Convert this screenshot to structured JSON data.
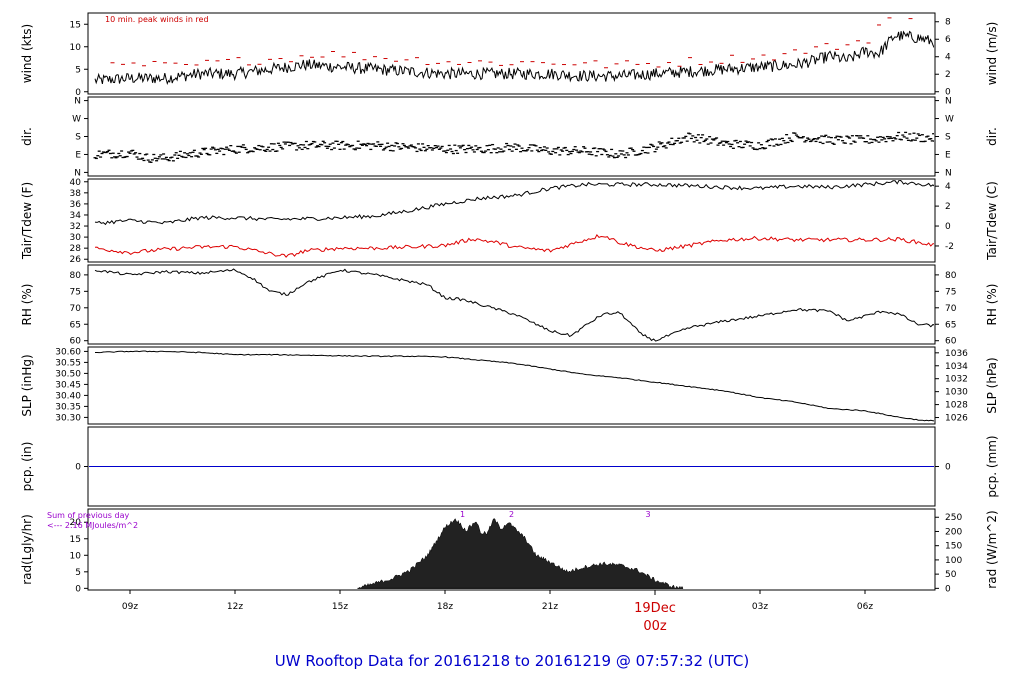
{
  "chart_data": [
    {
      "type": "line",
      "ylabel_left": "wind (kts)",
      "ylabel_right": "wind (m/s)",
      "ylim": [
        -0.5,
        17.5
      ],
      "ylim_right": [
        -0.26,
        9.0
      ],
      "yticks_left": [
        0,
        5,
        10,
        15
      ],
      "yticks_right": [
        0,
        2,
        4,
        6,
        8
      ],
      "annotation": "10 min. peak winds in red",
      "annotation_color": "#cc0000",
      "series": [
        {
          "color": "#000000",
          "x": [
            8.0,
            9.0,
            10.0,
            11.0,
            12.0,
            13.0,
            14.0,
            15.0,
            16.0,
            17.0,
            18.0,
            19.0,
            20.0,
            21.0,
            22.0,
            23.0,
            24.0,
            25.0,
            26.0,
            27.0,
            28.0,
            28.6,
            29.0,
            29.5,
            30.0,
            30.4,
            30.85,
            31.5,
            32.0
          ],
          "y": [
            2.5,
            3.0,
            3.0,
            4.0,
            4.0,
            5.0,
            6.0,
            5.5,
            5.0,
            4.5,
            4.0,
            4.0,
            4.0,
            4.0,
            3.5,
            3.5,
            4.0,
            4.5,
            5.0,
            5.5,
            6.0,
            7.0,
            8.0,
            7.0,
            9.0,
            8.5,
            12.5,
            12.0,
            11.0
          ]
        },
        {
          "color": "#cc0000",
          "x": [
            8.5,
            9.5,
            10.5,
            11.5,
            12.5,
            13.5,
            14.5,
            15.5,
            16.5,
            17.5,
            18.5,
            19.5,
            20.5,
            21.5,
            22.5,
            23.5,
            24.5,
            25.5,
            26.5,
            27.5,
            28.5,
            29.5,
            30.2,
            30.5,
            31.0,
            31.5
          ],
          "y": [
            5.5,
            6.0,
            5.5,
            6.5,
            7.0,
            7.5,
            8.5,
            8.0,
            7.5,
            7.0,
            6.5,
            6.5,
            6.5,
            6.5,
            6.0,
            6.0,
            6.5,
            7.0,
            7.5,
            8.0,
            9.5,
            10.5,
            12.0,
            16.0,
            17.0,
            15.0
          ]
        }
      ]
    },
    {
      "type": "scatter",
      "ylabel_left": "dir.",
      "ylabel_right": "dir.",
      "ylim": [
        -0.2,
        4.2
      ],
      "yticks_left": [
        "N",
        "E",
        "S",
        "W",
        "N"
      ],
      "yticks_right": [
        "N",
        "E",
        "S",
        "W",
        "N"
      ],
      "series": [
        {
          "color": "#000000",
          "x": [
            8.0,
            9.0,
            9.5,
            10.0,
            11.0,
            12.0,
            13.0,
            14.0,
            15.0,
            16.0,
            17.0,
            18.0,
            19.0,
            20.0,
            21.0,
            22.0,
            23.0,
            24.0,
            25.0,
            26.0,
            27.0,
            28.0,
            29.0,
            30.0,
            31.0,
            32.0
          ],
          "y": [
            1.0,
            1.1,
            0.8,
            0.8,
            1.1,
            1.3,
            1.4,
            1.5,
            1.5,
            1.5,
            1.4,
            1.3,
            1.3,
            1.4,
            1.2,
            1.2,
            1.0,
            1.4,
            2.0,
            1.6,
            1.5,
            2.0,
            1.8,
            1.8,
            2.0,
            1.9
          ]
        }
      ]
    },
    {
      "type": "line",
      "ylabel_left": "Tair/Tdew (F)",
      "ylabel_right": "Tair/Tdew (C)",
      "ylim": [
        25.5,
        40.5
      ],
      "ylim_right": [
        -3.61,
        4.72
      ],
      "yticks_left": [
        26,
        28,
        30,
        32,
        34,
        36,
        38,
        40
      ],
      "yticks_right": [
        -2,
        0,
        2,
        4
      ],
      "series": [
        {
          "color": "#000000",
          "x": [
            8.0,
            9.0,
            10.0,
            11.0,
            12.0,
            13.0,
            14.0,
            15.0,
            16.0,
            17.0,
            18.0,
            19.0,
            20.0,
            21.0,
            22.0,
            23.0,
            24.0,
            25.0,
            26.0,
            27.0,
            28.0,
            29.0,
            30.0,
            31.0,
            32.0
          ],
          "y": [
            32.5,
            33.0,
            32.5,
            33.5,
            33.5,
            33.2,
            33.3,
            33.5,
            33.8,
            34.8,
            36.0,
            37.0,
            37.5,
            38.8,
            39.5,
            39.5,
            39.5,
            39.3,
            39.0,
            38.8,
            39.2,
            39.0,
            39.5,
            40.0,
            39.3
          ]
        },
        {
          "color": "#dd0000",
          "x": [
            8.0,
            9.0,
            10.0,
            11.0,
            12.0,
            13.0,
            13.5,
            14.0,
            15.0,
            16.0,
            17.0,
            18.0,
            18.8,
            19.5,
            20.0,
            21.0,
            22.0,
            22.5,
            23.0,
            24.0,
            25.0,
            26.0,
            27.0,
            28.0,
            29.0,
            30.0,
            31.0,
            32.0
          ],
          "y": [
            28.0,
            27.2,
            27.8,
            28.2,
            28.3,
            27.0,
            26.5,
            27.5,
            28.0,
            28.0,
            28.2,
            28.5,
            29.7,
            29.0,
            28.2,
            27.5,
            29.5,
            30.4,
            29.0,
            27.5,
            28.5,
            29.5,
            29.8,
            29.5,
            29.5,
            29.5,
            29.6,
            28.5
          ]
        }
      ]
    },
    {
      "type": "line",
      "ylabel_left": "RH (%)",
      "ylabel_right": "RH (%)",
      "ylim": [
        59,
        83
      ],
      "ylim_right": [
        59,
        83
      ],
      "yticks_left": [
        60,
        65,
        70,
        75,
        80
      ],
      "yticks_right": [
        60,
        65,
        70,
        75,
        80
      ],
      "series": [
        {
          "color": "#000000",
          "x": [
            8.0,
            9.0,
            10.0,
            11.0,
            12.0,
            12.5,
            13.0,
            13.5,
            14.0,
            15.0,
            16.0,
            17.0,
            17.5,
            18.0,
            18.5,
            19.0,
            20.0,
            21.0,
            21.6,
            22.0,
            22.5,
            23.0,
            23.6,
            24.0,
            25.0,
            26.0,
            27.0,
            28.0,
            29.0,
            29.5,
            30.0,
            30.5,
            31.0,
            31.5,
            32.0
          ],
          "y": [
            81.5,
            80.0,
            81.0,
            80.5,
            81.5,
            79.0,
            75.0,
            74.0,
            77.5,
            81.5,
            80.0,
            78.0,
            77.0,
            73.0,
            72.5,
            71.0,
            68.0,
            63.0,
            61.5,
            64.5,
            68.0,
            68.5,
            62.0,
            60.0,
            64.0,
            66.0,
            67.5,
            69.5,
            69.0,
            66.0,
            67.5,
            69.0,
            68.0,
            65.0,
            64.5
          ]
        }
      ]
    },
    {
      "type": "line",
      "ylabel_left": "SLP (inHg)",
      "ylabel_right": "SLP (hPa)",
      "ylim": [
        30.27,
        30.62
      ],
      "ylim_right": [
        1025.0,
        1036.9
      ],
      "yticks_left": [
        "30.30",
        "30.35",
        "30.40",
        "30.45",
        "30.50",
        "30.55",
        "30.60"
      ],
      "yticks_right": [
        1026,
        1028,
        1030,
        1032,
        1034,
        1036
      ],
      "series": [
        {
          "color": "#000000",
          "x": [
            8.0,
            9.0,
            10.0,
            11.0,
            12.0,
            13.0,
            14.0,
            15.0,
            16.0,
            17.0,
            18.0,
            19.0,
            20.0,
            21.0,
            22.0,
            23.0,
            24.0,
            25.0,
            26.0,
            27.0,
            28.0,
            29.0,
            30.0,
            31.0,
            31.7,
            32.0
          ],
          "y": [
            30.595,
            30.6,
            30.6,
            30.595,
            30.585,
            30.585,
            30.583,
            30.58,
            30.578,
            30.578,
            30.575,
            30.56,
            30.545,
            30.52,
            30.495,
            30.48,
            30.46,
            30.44,
            30.42,
            30.39,
            30.37,
            30.34,
            30.33,
            30.3,
            30.285,
            30.285
          ]
        }
      ]
    },
    {
      "type": "line",
      "ylabel_left": "pcp. (in)",
      "ylabel_right": "pcp. (mm)",
      "ylim": [
        -1,
        1
      ],
      "yticks_left": [
        0
      ],
      "yticks_right": [
        0
      ],
      "series": [
        {
          "color": "#0000cc",
          "x": [
            7.8,
            32.0
          ],
          "y": [
            0,
            0
          ]
        }
      ]
    },
    {
      "type": "area",
      "ylabel_left": "rad(Lgly/hr)",
      "ylabel_right": "rad (W/m^2)",
      "ylim": [
        -0.5,
        24
      ],
      "ylim_right": [
        -5.8,
        279
      ],
      "yticks_left": [
        0,
        5,
        10,
        15,
        20
      ],
      "yticks_right": [
        0,
        50,
        100,
        150,
        200,
        250
      ],
      "annotation": "Sum of previous day",
      "annotation2": "<--- 2.16 MJoules/m^2",
      "annotation_color": "#9900cc",
      "marker_labels": [
        {
          "x": 18.5,
          "label": "1"
        },
        {
          "x": 19.9,
          "label": "2"
        },
        {
          "x": 23.8,
          "label": "3"
        }
      ],
      "series": [
        {
          "color": "#000000",
          "x": [
            15.5,
            16.0,
            16.5,
            17.0,
            17.5,
            18.0,
            18.3,
            18.6,
            18.9,
            19.0,
            19.2,
            19.4,
            19.6,
            19.8,
            20.0,
            20.3,
            20.6,
            21.0,
            21.5,
            22.0,
            22.5,
            23.0,
            23.5,
            24.0,
            24.5,
            24.8
          ],
          "y": [
            0.0,
            1.5,
            3.0,
            5.5,
            10.0,
            18.5,
            21.0,
            17.5,
            20.5,
            17.0,
            16.5,
            21.0,
            18.0,
            20.0,
            18.0,
            15.0,
            10.0,
            8.0,
            5.0,
            6.5,
            7.5,
            7.0,
            5.5,
            2.5,
            0.5,
            0.0
          ]
        }
      ]
    }
  ],
  "time_axis": {
    "range": [
      7.8,
      32.0
    ],
    "ticks": [
      {
        "x": 9,
        "label": "09z"
      },
      {
        "x": 12,
        "label": "12z"
      },
      {
        "x": 15,
        "label": "15z"
      },
      {
        "x": 18,
        "label": "18z"
      },
      {
        "x": 21,
        "label": "21z"
      },
      {
        "x": 27,
        "label": "03z"
      },
      {
        "x": 30,
        "label": "06z"
      }
    ],
    "day_marker": {
      "x": 24,
      "line1": "19Dec",
      "line2": "00z",
      "color": "#cc0000"
    }
  },
  "footer": {
    "text": "UW Rooftop Data for 20161218  to  20161219 @ 07:57:32  (UTC)",
    "color": "#0000cc"
  }
}
